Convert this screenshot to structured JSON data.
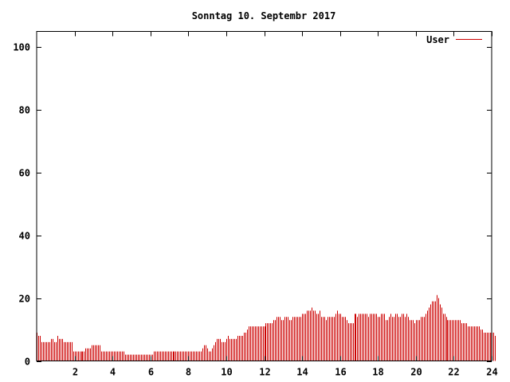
{
  "chart_data": {
    "type": "bar",
    "title": "Sonntag 10. Septembr 2017",
    "xlabel": "",
    "ylabel": "",
    "xlim": [
      0,
      24
    ],
    "ylim": [
      0,
      105
    ],
    "x_ticks": [
      "2",
      "4",
      "6",
      "8",
      "10",
      "12",
      "14",
      "16",
      "18",
      "20",
      "22",
      "24"
    ],
    "y_ticks": [
      "0",
      "20",
      "40",
      "60",
      "80",
      "100"
    ],
    "grid": false,
    "legend": "top-right",
    "series": [
      {
        "name": "User",
        "color": "#cc0000",
        "interval_minutes": 5,
        "values": [
          9,
          8,
          8,
          6,
          6,
          6,
          6,
          6,
          6,
          7,
          7,
          6,
          6,
          8,
          7,
          7,
          7,
          6,
          6,
          6,
          6,
          6,
          6,
          3,
          3,
          3,
          3,
          3,
          3,
          3,
          3,
          4,
          4,
          4,
          4,
          5,
          5,
          5,
          5,
          5,
          5,
          3,
          3,
          3,
          3,
          3,
          3,
          3,
          3,
          3,
          3,
          3,
          3,
          3,
          3,
          3,
          2,
          2,
          2,
          2,
          2,
          2,
          2,
          2,
          2,
          2,
          2,
          2,
          2,
          2,
          2,
          2,
          2,
          2,
          3,
          3,
          3,
          3,
          3,
          3,
          3,
          3,
          3,
          3,
          3,
          3,
          3,
          3,
          3,
          3,
          3,
          3,
          3,
          3,
          3,
          3,
          3,
          3,
          3,
          3,
          3,
          3,
          3,
          3,
          3,
          4,
          5,
          5,
          4,
          3,
          3,
          4,
          5,
          6,
          7,
          7,
          7,
          6,
          6,
          6,
          7,
          8,
          7,
          7,
          7,
          7,
          7,
          8,
          8,
          8,
          8,
          9,
          9,
          10,
          11,
          11,
          11,
          11,
          11,
          11,
          11,
          11,
          11,
          11,
          11,
          12,
          12,
          12,
          12,
          12,
          13,
          13,
          14,
          14,
          14,
          13,
          13,
          14,
          14,
          14,
          13,
          13,
          14,
          14,
          14,
          14,
          14,
          14,
          15,
          15,
          15,
          16,
          16,
          16,
          17,
          16,
          16,
          15,
          15,
          16,
          14,
          14,
          14,
          13,
          14,
          14,
          14,
          14,
          14,
          15,
          16,
          15,
          15,
          14,
          14,
          14,
          13,
          12,
          12,
          12,
          12,
          15,
          15,
          14,
          15,
          15,
          15,
          15,
          15,
          15,
          14,
          15,
          15,
          15,
          15,
          15,
          14,
          14,
          15,
          15,
          15,
          13,
          13,
          14,
          15,
          14,
          14,
          15,
          15,
          14,
          14,
          15,
          15,
          14,
          15,
          14,
          13,
          13,
          13,
          12,
          13,
          13,
          13,
          14,
          14,
          14,
          15,
          16,
          17,
          18,
          19,
          19,
          19,
          21,
          20,
          18,
          17,
          15,
          15,
          14,
          13,
          13,
          13,
          13,
          13,
          13,
          13,
          13,
          13,
          12,
          12,
          12,
          12,
          11,
          11,
          11,
          11,
          11,
          11,
          11,
          11,
          10,
          10,
          9,
          9,
          9,
          9,
          9,
          9,
          9,
          8
        ]
      }
    ]
  }
}
